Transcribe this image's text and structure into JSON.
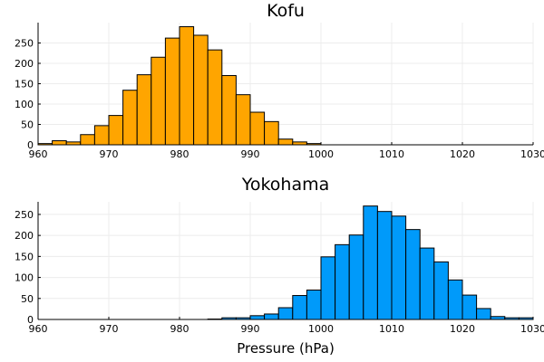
{
  "chart_data": [
    {
      "type": "bar",
      "title": "Kofu",
      "xlabel": "",
      "ylabel": "",
      "color": "#FFA500",
      "xlim": [
        960,
        1030
      ],
      "ylim": [
        0,
        300
      ],
      "xticks": [
        960,
        970,
        980,
        990,
        1000,
        1010,
        1020,
        1030
      ],
      "yticks": [
        0,
        50,
        100,
        150,
        200,
        250
      ],
      "grid": true,
      "bin_width": 2,
      "bins": [
        {
          "x0": 960,
          "x1": 962,
          "value": 3
        },
        {
          "x0": 962,
          "x1": 964,
          "value": 10
        },
        {
          "x0": 964,
          "x1": 966,
          "value": 7
        },
        {
          "x0": 966,
          "x1": 968,
          "value": 25
        },
        {
          "x0": 968,
          "x1": 970,
          "value": 47
        },
        {
          "x0": 970,
          "x1": 972,
          "value": 72
        },
        {
          "x0": 972,
          "x1": 974,
          "value": 134
        },
        {
          "x0": 974,
          "x1": 976,
          "value": 172
        },
        {
          "x0": 976,
          "x1": 978,
          "value": 215
        },
        {
          "x0": 978,
          "x1": 980,
          "value": 262
        },
        {
          "x0": 980,
          "x1": 982,
          "value": 290
        },
        {
          "x0": 982,
          "x1": 984,
          "value": 269
        },
        {
          "x0": 984,
          "x1": 986,
          "value": 233
        },
        {
          "x0": 986,
          "x1": 988,
          "value": 170
        },
        {
          "x0": 988,
          "x1": 990,
          "value": 123
        },
        {
          "x0": 990,
          "x1": 992,
          "value": 80
        },
        {
          "x0": 992,
          "x1": 994,
          "value": 57
        },
        {
          "x0": 994,
          "x1": 996,
          "value": 14
        },
        {
          "x0": 996,
          "x1": 998,
          "value": 7
        },
        {
          "x0": 998,
          "x1": 1000,
          "value": 3
        }
      ]
    },
    {
      "type": "bar",
      "title": "Yokohama",
      "xlabel": "Pressure (hPa)",
      "ylabel": "",
      "color": "#009AFA",
      "xlim": [
        960,
        1030
      ],
      "ylim": [
        0,
        280
      ],
      "xticks": [
        960,
        970,
        980,
        990,
        1000,
        1010,
        1020,
        1030
      ],
      "yticks": [
        0,
        50,
        100,
        150,
        200,
        250
      ],
      "grid": true,
      "bin_width": 2,
      "bins": [
        {
          "x0": 984,
          "x1": 986,
          "value": 1
        },
        {
          "x0": 986,
          "x1": 988,
          "value": 4
        },
        {
          "x0": 988,
          "x1": 990,
          "value": 4
        },
        {
          "x0": 990,
          "x1": 992,
          "value": 9
        },
        {
          "x0": 992,
          "x1": 994,
          "value": 13
        },
        {
          "x0": 994,
          "x1": 996,
          "value": 28
        },
        {
          "x0": 996,
          "x1": 998,
          "value": 57
        },
        {
          "x0": 998,
          "x1": 1000,
          "value": 70
        },
        {
          "x0": 1000,
          "x1": 1002,
          "value": 149
        },
        {
          "x0": 1002,
          "x1": 1004,
          "value": 178
        },
        {
          "x0": 1004,
          "x1": 1006,
          "value": 201
        },
        {
          "x0": 1006,
          "x1": 1008,
          "value": 270
        },
        {
          "x0": 1008,
          "x1": 1010,
          "value": 257
        },
        {
          "x0": 1010,
          "x1": 1012,
          "value": 246
        },
        {
          "x0": 1012,
          "x1": 1014,
          "value": 214
        },
        {
          "x0": 1014,
          "x1": 1016,
          "value": 170
        },
        {
          "x0": 1016,
          "x1": 1018,
          "value": 137
        },
        {
          "x0": 1018,
          "x1": 1020,
          "value": 94
        },
        {
          "x0": 1020,
          "x1": 1022,
          "value": 58
        },
        {
          "x0": 1022,
          "x1": 1024,
          "value": 26
        },
        {
          "x0": 1024,
          "x1": 1026,
          "value": 7
        },
        {
          "x0": 1026,
          "x1": 1028,
          "value": 4
        },
        {
          "x0": 1028,
          "x1": 1030,
          "value": 4
        }
      ]
    }
  ]
}
